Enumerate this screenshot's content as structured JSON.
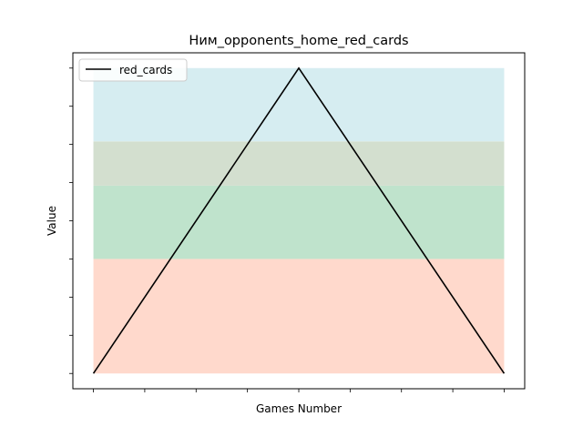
{
  "chart_data": {
    "type": "line",
    "title": "Ним_opponents_home_red_cards",
    "xlabel": "Games Number",
    "ylabel": "Value",
    "x": [
      0,
      1,
      2
    ],
    "series": [
      {
        "name": "red_cards",
        "values": [
          0,
          1,
          0
        ],
        "color": "#000000"
      }
    ],
    "xlim": [
      -0.1,
      2.1
    ],
    "ylim": [
      -0.05,
      1.05
    ],
    "x_minor_ticks_per_unit": 4,
    "y_ticks": [
      0,
      0.125,
      0.25,
      0.375,
      0.5,
      0.625,
      0.75,
      0.875,
      1.0
    ],
    "tick_labels_visible": false,
    "bands": [
      {
        "from": 0.0,
        "to": 0.375,
        "color": "#ffd9cc"
      },
      {
        "from": 0.375,
        "to": 0.615,
        "color": "#bfe3cc"
      },
      {
        "from": 0.615,
        "to": 0.76,
        "color": "#d3dfcf"
      },
      {
        "from": 0.76,
        "to": 1.0,
        "color": "#d6edf1"
      }
    ],
    "legend_position": "upper-left",
    "grid": false
  }
}
